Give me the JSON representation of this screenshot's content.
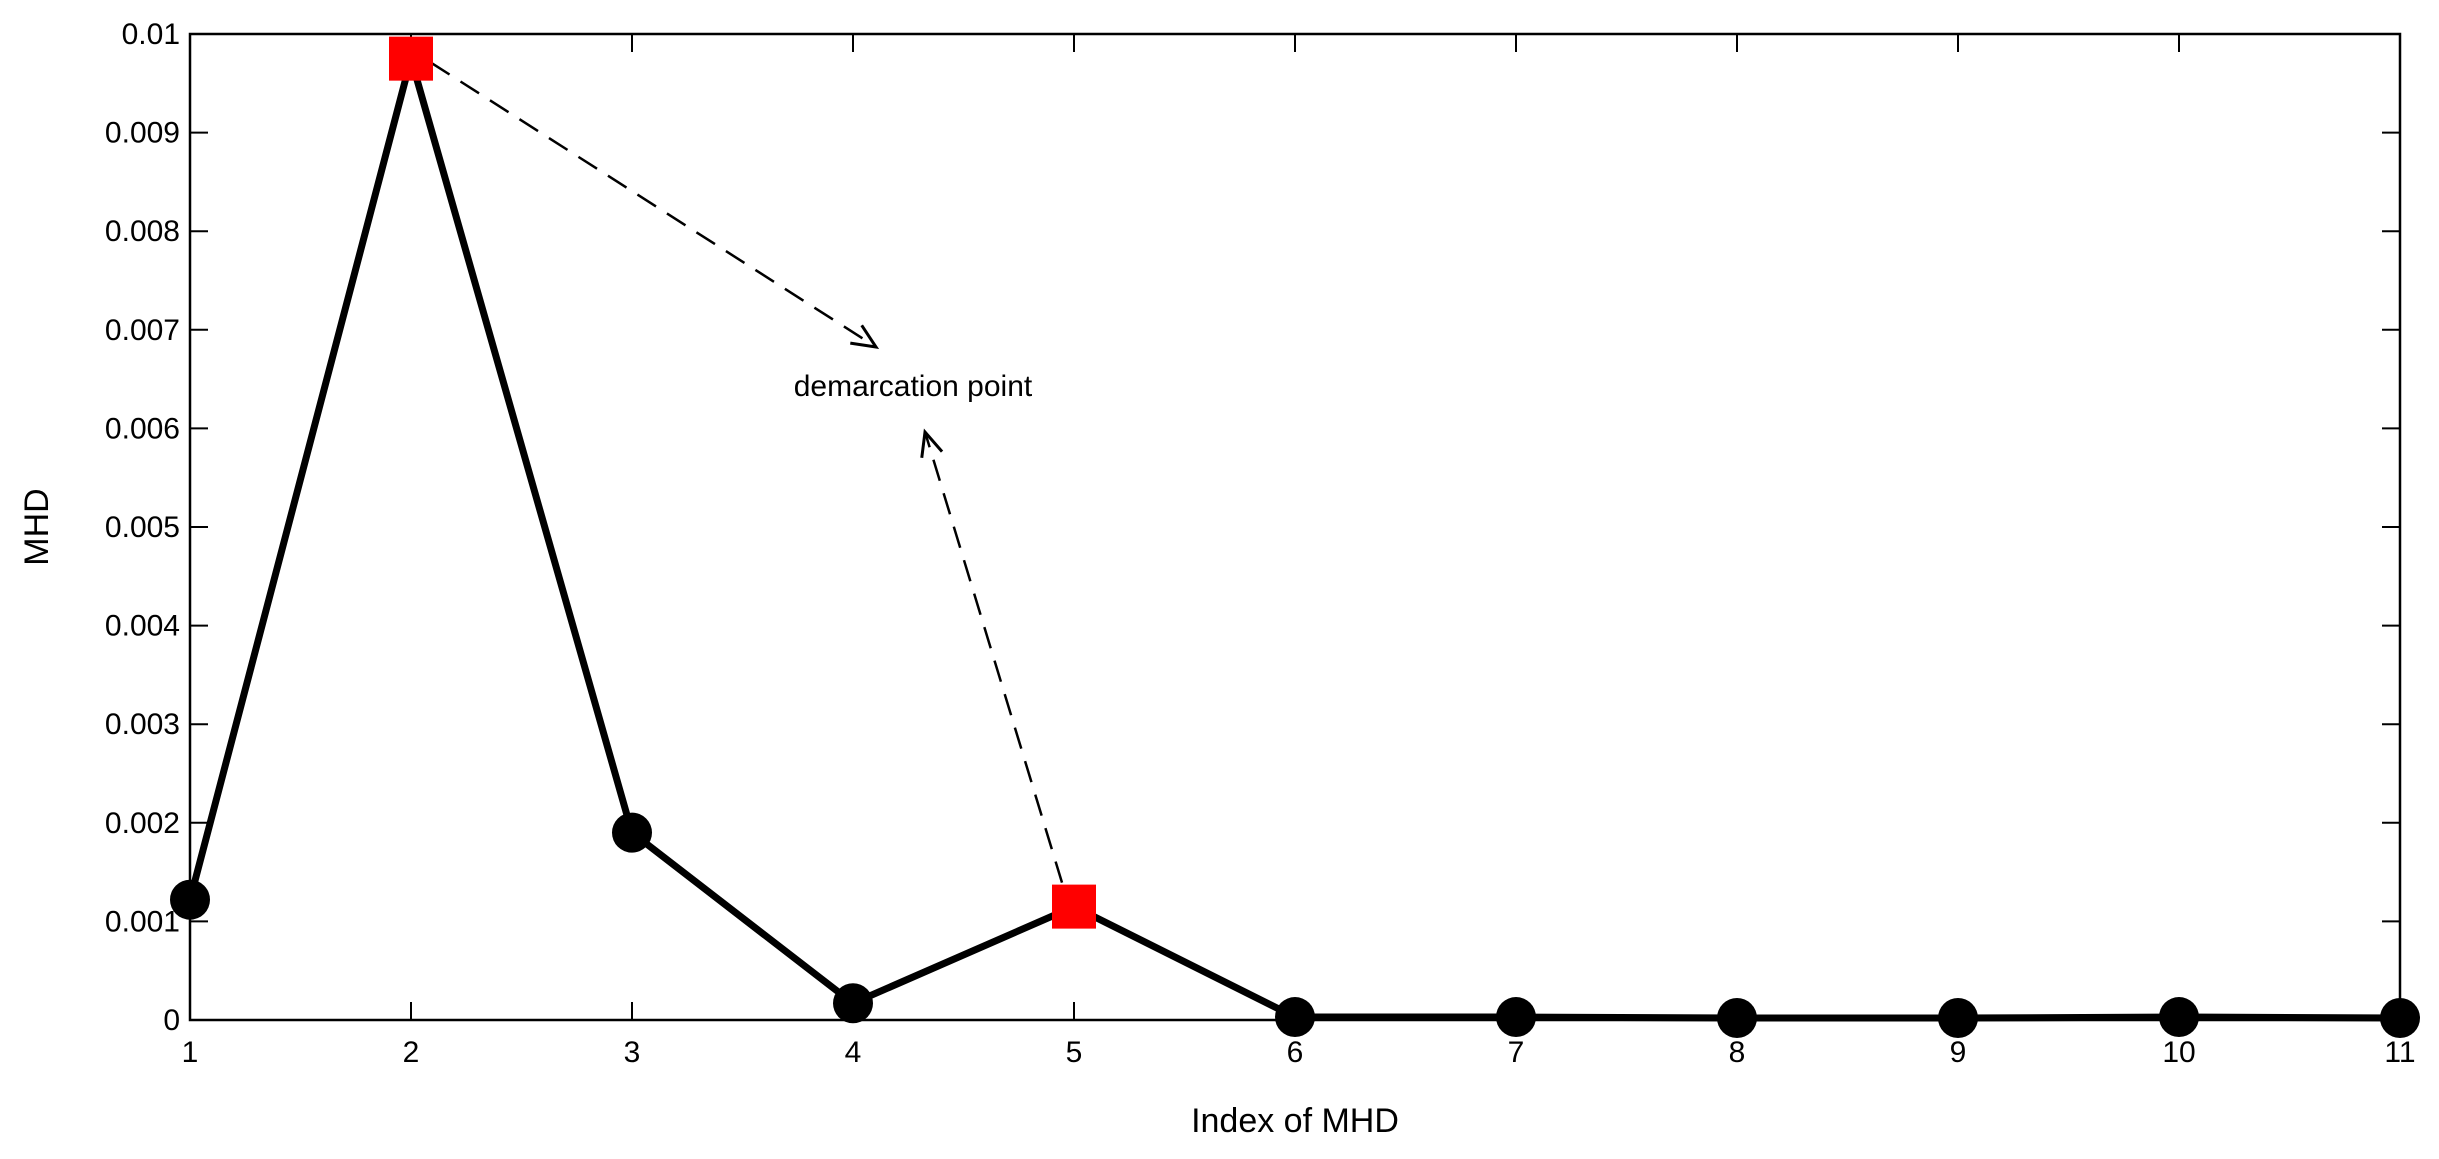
{
  "chart_data": {
    "type": "line",
    "xlabel": "Index of MHD",
    "ylabel": "MHD",
    "xlim": [
      1,
      11
    ],
    "ylim": [
      0,
      0.01
    ],
    "x_ticks": [
      "1",
      "2",
      "3",
      "4",
      "5",
      "6",
      "7",
      "8",
      "9",
      "10",
      "11"
    ],
    "y_ticks": [
      "0",
      "0.001",
      "0.002",
      "0.003",
      "0.004",
      "0.005",
      "0.006",
      "0.007",
      "0.008",
      "0.009",
      "0.01"
    ],
    "grid": false,
    "series": [
      {
        "x": [
          1,
          2,
          3,
          4,
          5,
          6,
          7,
          8,
          9,
          10,
          11
        ],
        "y": [
          0.00122,
          0.00975,
          0.0019,
          0.00017,
          0.00115,
          3e-05,
          3e-05,
          2e-05,
          2e-05,
          3e-05,
          2e-05
        ],
        "line_color": "#000000",
        "marker": "circle",
        "marker_color": "#000000"
      }
    ],
    "highlighted_points": [
      {
        "x": 2,
        "y": 0.00975,
        "marker": "square",
        "color": "#ff0000"
      },
      {
        "x": 5,
        "y": 0.00115,
        "marker": "square",
        "color": "#ff0000"
      }
    ],
    "annotations": [
      {
        "text": "demarcation point",
        "arrows_from_points": [
          2,
          5
        ],
        "style": "dashed"
      }
    ]
  }
}
